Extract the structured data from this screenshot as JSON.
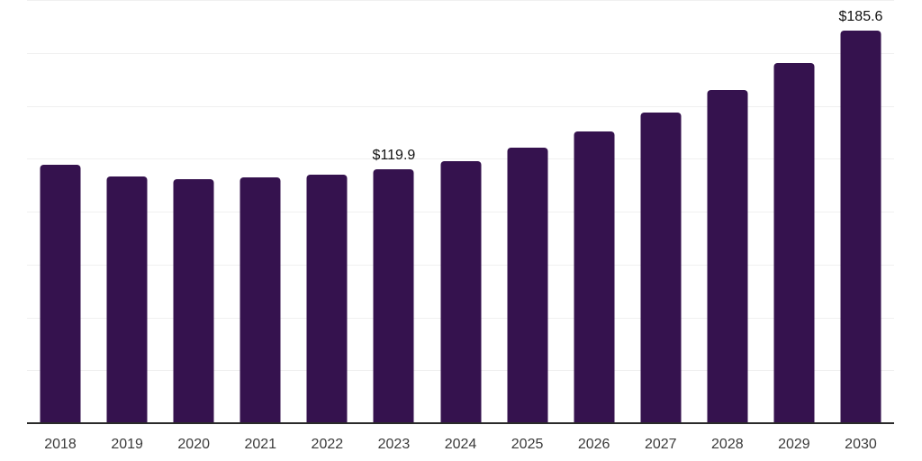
{
  "chart_data": {
    "type": "bar",
    "title": "",
    "xlabel": "",
    "ylabel": "",
    "categories": [
      "2018",
      "2019",
      "2020",
      "2021",
      "2022",
      "2023",
      "2024",
      "2025",
      "2026",
      "2027",
      "2028",
      "2029",
      "2030"
    ],
    "values": [
      122.2,
      116.6,
      115.4,
      116.2,
      117.5,
      119.9,
      123.9,
      130.3,
      138.0,
      146.8,
      157.4,
      170.3,
      185.6
    ],
    "data_labels": [
      "",
      "",
      "",
      "",
      "",
      "$119.9",
      "",
      "",
      "",
      "",
      "",
      "",
      "$185.6"
    ],
    "ylim": [
      0,
      200
    ],
    "gridline_step": 25,
    "grid": "horizontal",
    "legend_position": "none",
    "colors": {
      "bar": "#35124e",
      "gridline": "#f0f0f0",
      "axis_line": "#2a2a2a",
      "tick_label": "#3a3a3a",
      "data_label": "#111111",
      "background": "#ffffff"
    }
  }
}
